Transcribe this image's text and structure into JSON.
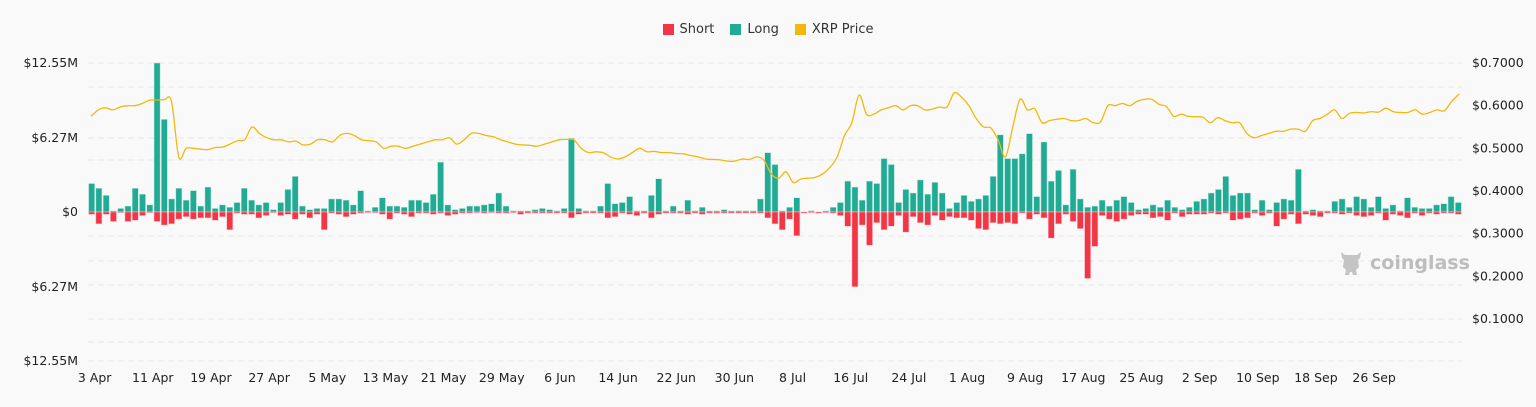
{
  "legend": [
    {
      "label": "Short",
      "color": "#f23645"
    },
    {
      "label": "Long",
      "color": "#22ab94"
    },
    {
      "label": "XRP Price",
      "color": "#f0b90b"
    }
  ],
  "watermark": {
    "text": "coinglass",
    "icon": "bull-logo-icon"
  },
  "chart_data": {
    "type": "bar",
    "title": "",
    "legend_position": "top-center",
    "grid": true,
    "x_tick_labels": [
      "3 Apr",
      "11 Apr",
      "19 Apr",
      "27 Apr",
      "5 May",
      "13 May",
      "21 May",
      "29 May",
      "6 Jun",
      "14 Jun",
      "22 Jun",
      "30 Jun",
      "8 Jul",
      "16 Jul",
      "24 Jul",
      "1 Aug",
      "9 Aug",
      "17 Aug",
      "25 Aug",
      "2 Sep",
      "10 Sep",
      "18 Sep",
      "26 Sep"
    ],
    "left_axis": {
      "ticks": [
        "$12.55M",
        "$6.27M",
        "$0",
        "$6.27M",
        "$12.55M"
      ],
      "range": [
        -12.55,
        12.55
      ],
      "unit": "USD millions"
    },
    "right_axis": {
      "ticks": [
        "$0.7000",
        "$0.6000",
        "$0.5000",
        "$0.4000",
        "$0.3000",
        "$0.2000",
        "$0.1000"
      ],
      "range": [
        0,
        0.7
      ],
      "unit": "USD"
    },
    "series": [
      {
        "name": "Long",
        "axis": "left",
        "values": [
          2.4,
          2.0,
          1.4,
          0.1,
          0.3,
          0.5,
          2.0,
          1.5,
          0.6,
          12.55,
          7.8,
          1.1,
          2.0,
          1.0,
          1.8,
          0.5,
          2.1,
          0.3,
          0.6,
          0.4,
          0.8,
          2.0,
          1.0,
          0.6,
          0.8,
          0.2,
          0.8,
          1.9,
          3.0,
          0.5,
          0.2,
          0.3,
          0.3,
          1.1,
          1.1,
          1.0,
          0.6,
          1.8,
          0.1,
          0.4,
          1.2,
          0.5,
          0.5,
          0.4,
          1.0,
          1.0,
          0.8,
          1.5,
          4.2,
          0.6,
          0.2,
          0.3,
          0.5,
          0.5,
          0.6,
          0.7,
          1.6,
          0.5,
          0.1,
          0.1,
          0.1,
          0.2,
          0.3,
          0.2,
          0.1,
          0.3,
          6.2,
          0.3,
          0.1,
          0.1,
          0.5,
          2.4,
          0.7,
          0.8,
          1.3,
          0.1,
          0.1,
          1.4,
          2.8,
          0.1,
          0.5,
          0.1,
          1.0,
          0.1,
          0.4,
          0.1,
          0.1,
          0.2,
          0.1,
          0.1,
          0.1,
          0.1,
          1.1,
          5.0,
          4.0,
          0.1,
          0.4,
          1.2,
          0.0,
          0.1,
          0.0,
          0.1,
          0.4,
          0.8,
          2.6,
          2.1,
          1.0,
          2.6,
          2.4,
          4.5,
          4.0,
          0.8,
          1.9,
          1.6,
          2.7,
          1.5,
          2.5,
          1.6,
          0.3,
          0.8,
          1.4,
          0.9,
          1.1,
          1.4,
          3.0,
          6.5,
          4.5,
          4.5,
          4.9,
          6.6,
          1.3,
          5.9,
          2.6,
          3.5,
          0.6,
          3.6,
          1.1,
          0.4,
          0.5,
          1.0,
          0.5,
          1.0,
          1.3,
          0.8,
          0.2,
          0.3,
          0.6,
          0.4,
          1.0,
          0.4,
          0.2,
          0.4,
          0.9,
          1.1,
          1.6,
          1.9,
          3.0,
          1.4,
          1.6,
          1.6,
          0.2,
          1.0,
          0.2,
          0.8,
          1.1,
          1.0,
          3.6,
          0.1,
          0.2,
          0.1,
          0.1,
          0.9,
          1.1,
          0.4,
          1.3,
          1.1,
          0.4,
          1.3,
          0.3,
          0.6,
          0.1,
          1.2,
          0.4,
          0.3,
          0.3,
          0.6,
          0.7,
          1.3,
          0.8
        ],
        "color": "#22ab94"
      },
      {
        "name": "Short",
        "axis": "left",
        "values": [
          -0.2,
          -1.0,
          -0.2,
          -0.8,
          0.0,
          -0.8,
          -0.7,
          -0.3,
          0.0,
          -0.8,
          -1.1,
          -1.0,
          -0.6,
          -0.4,
          -0.6,
          -0.5,
          -0.5,
          -0.7,
          -0.4,
          -1.5,
          -0.1,
          -0.2,
          -0.2,
          -0.5,
          -0.3,
          0.0,
          -0.3,
          -0.2,
          -0.6,
          -0.2,
          -0.5,
          -0.2,
          -1.5,
          -0.1,
          -0.2,
          -0.4,
          -0.2,
          -0.1,
          0.0,
          0.0,
          -0.2,
          -0.6,
          -0.1,
          -0.2,
          -0.4,
          -0.1,
          -0.1,
          -0.2,
          -0.1,
          -0.3,
          -0.2,
          -0.1,
          -0.1,
          0.0,
          -0.1,
          0.0,
          -0.1,
          -0.1,
          0.0,
          -0.2,
          -0.1,
          -0.1,
          -0.1,
          -0.1,
          -0.1,
          -0.1,
          -0.5,
          -0.2,
          -0.1,
          -0.1,
          -0.1,
          -0.5,
          -0.4,
          -0.1,
          -0.2,
          -0.3,
          -0.1,
          -0.5,
          -0.2,
          -0.1,
          -0.1,
          -0.1,
          -0.2,
          -0.1,
          -0.2,
          -0.1,
          -0.1,
          -0.1,
          -0.1,
          -0.1,
          -0.1,
          -0.1,
          -0.1,
          -0.5,
          -1.0,
          -1.5,
          -0.6,
          -2.0,
          -0.1,
          0.0,
          -0.1,
          0.0,
          -0.1,
          -0.3,
          -1.2,
          -6.3,
          -1.1,
          -2.8,
          -0.9,
          -1.5,
          -1.2,
          -0.3,
          -1.7,
          -0.4,
          -0.9,
          -1.1,
          -0.3,
          -0.7,
          -0.4,
          -0.5,
          -0.5,
          -0.7,
          -1.4,
          -1.5,
          -0.9,
          -1.0,
          -0.9,
          -1.0,
          -0.1,
          -0.6,
          -0.2,
          -0.5,
          -2.2,
          -1.0,
          -0.2,
          -0.8,
          -1.4,
          -5.6,
          -2.9,
          -0.3,
          -0.6,
          -0.8,
          -0.6,
          -0.3,
          -0.2,
          -0.2,
          -0.5,
          -0.4,
          -0.7,
          -0.1,
          -0.4,
          -0.2,
          -0.2,
          -0.2,
          -0.1,
          -0.2,
          -0.1,
          -0.7,
          -0.6,
          -0.5,
          -0.1,
          -0.3,
          -0.1,
          -1.2,
          -0.6,
          -0.2,
          -1.0,
          -0.2,
          -0.3,
          -0.4,
          -0.1,
          -0.1,
          -0.2,
          -0.1,
          -0.3,
          -0.4,
          -0.3,
          -0.1,
          -0.7,
          -0.2,
          -0.3,
          -0.5,
          -0.1,
          -0.3,
          -0.1,
          -0.2,
          -0.1,
          -0.1,
          -0.2,
          -0.5,
          -0.2,
          -0.2,
          -0.3
        ],
        "color": "#f23645"
      },
      {
        "name": "XRP Price",
        "axis": "right",
        "type": "line",
        "values": [
          0.575,
          0.59,
          0.595,
          0.59,
          0.597,
          0.6,
          0.6,
          0.605,
          0.613,
          0.613,
          0.614,
          0.61,
          0.48,
          0.5,
          0.5,
          0.498,
          0.497,
          0.502,
          0.503,
          0.51,
          0.518,
          0.52,
          0.55,
          0.535,
          0.525,
          0.52,
          0.52,
          0.515,
          0.517,
          0.508,
          0.51,
          0.52,
          0.52,
          0.515,
          0.53,
          0.535,
          0.53,
          0.52,
          0.518,
          0.515,
          0.5,
          0.505,
          0.505,
          0.5,
          0.505,
          0.51,
          0.515,
          0.52,
          0.52,
          0.525,
          0.51,
          0.52,
          0.535,
          0.535,
          0.53,
          0.527,
          0.52,
          0.515,
          0.51,
          0.508,
          0.507,
          0.505,
          0.51,
          0.515,
          0.52,
          0.521,
          0.52,
          0.5,
          0.49,
          0.492,
          0.49,
          0.48,
          0.475,
          0.48,
          0.49,
          0.5,
          0.492,
          0.493,
          0.49,
          0.49,
          0.488,
          0.487,
          0.483,
          0.48,
          0.475,
          0.474,
          0.473,
          0.47,
          0.47,
          0.475,
          0.474,
          0.48,
          0.472,
          0.44,
          0.43,
          0.445,
          0.42,
          0.428,
          0.43,
          0.432,
          0.44,
          0.455,
          0.48,
          0.53,
          0.56,
          0.625,
          0.58,
          0.58,
          0.59,
          0.595,
          0.6,
          0.59,
          0.6,
          0.6,
          0.59,
          0.592,
          0.597,
          0.597,
          0.63,
          0.62,
          0.6,
          0.57,
          0.55,
          0.548,
          0.52,
          0.48,
          0.55,
          0.615,
          0.59,
          0.593,
          0.56,
          0.565,
          0.568,
          0.57,
          0.565,
          0.565,
          0.57,
          0.56,
          0.562,
          0.6,
          0.6,
          0.605,
          0.6,
          0.61,
          0.615,
          0.615,
          0.603,
          0.598,
          0.575,
          0.58,
          0.575,
          0.574,
          0.573,
          0.56,
          0.572,
          0.565,
          0.56,
          0.56,
          0.535,
          0.525,
          0.53,
          0.535,
          0.54,
          0.54,
          0.545,
          0.545,
          0.54,
          0.565,
          0.57,
          0.58,
          0.59,
          0.57,
          0.582,
          0.584,
          0.583,
          0.586,
          0.585,
          0.594,
          0.586,
          0.584,
          0.584,
          0.59,
          0.58,
          0.584,
          0.59,
          0.588,
          0.61,
          0.627
        ],
        "color": "#f0b90b"
      }
    ]
  }
}
